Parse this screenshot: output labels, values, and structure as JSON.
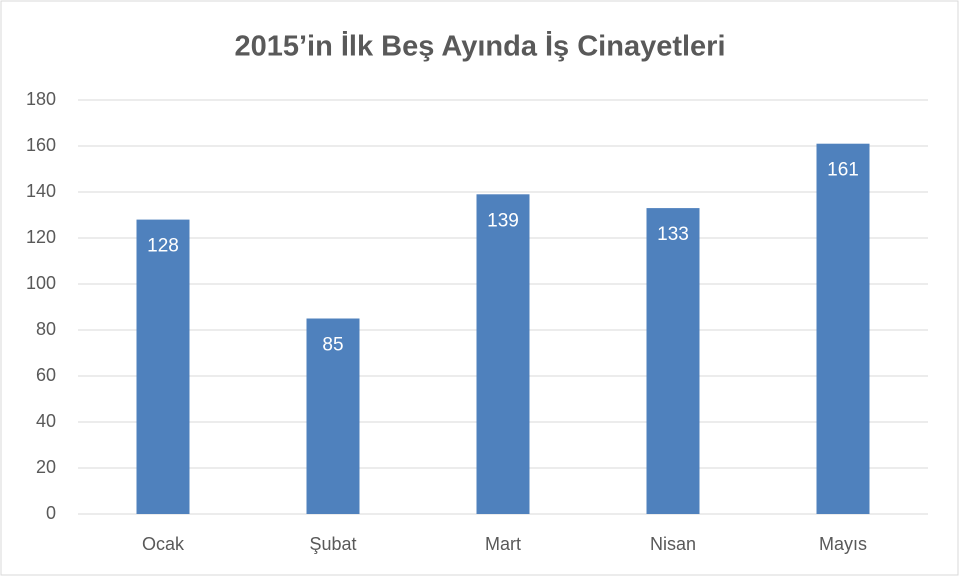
{
  "chart_data": {
    "type": "bar",
    "title": "2015’in İlk Beş Ayında İş Cinayetleri",
    "categories": [
      "Ocak",
      "Şubat",
      "Mart",
      "Nisan",
      "Mayıs"
    ],
    "values": [
      128,
      85,
      139,
      133,
      161
    ],
    "color": "#4f81bd",
    "ylim": [
      0,
      180
    ],
    "yticks": [
      0,
      20,
      40,
      60,
      80,
      100,
      120,
      140,
      160,
      180
    ],
    "grid": true
  }
}
